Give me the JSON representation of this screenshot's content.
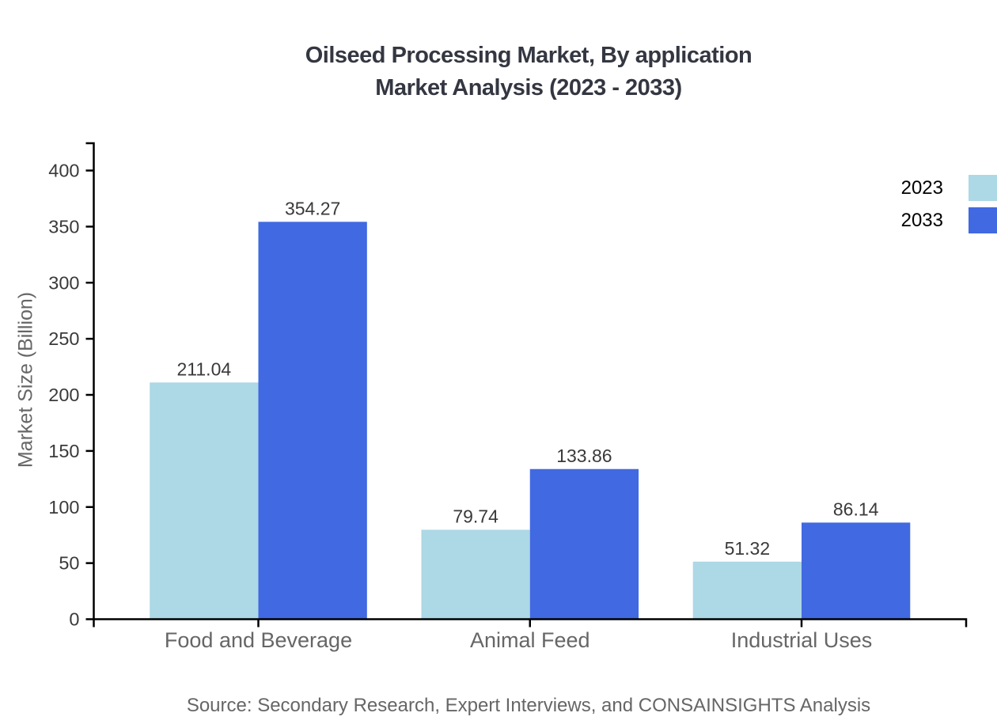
{
  "title": {
    "line1": "Oilseed Processing Market, By application",
    "line2": "Market Analysis (2023 - 2033)"
  },
  "chart_data": {
    "type": "bar",
    "title": "Oilseed Processing Market, By application Market Analysis (2023 - 2033)",
    "categories": [
      "Food and Beverage",
      "Animal Feed",
      "Industrial Uses"
    ],
    "series": [
      {
        "name": "2023",
        "color": "#ADD8E6",
        "values": [
          211.04,
          79.74,
          51.32
        ],
        "labels": [
          "211.04",
          "79.74",
          "51.32"
        ]
      },
      {
        "name": "2033",
        "color": "#4169E1",
        "values": [
          354.27,
          133.86,
          86.14
        ],
        "labels": [
          "354.27",
          "133.86",
          "86.14"
        ]
      }
    ],
    "xlabel": "",
    "ylabel": "Market Size (Billion)",
    "ylim": [
      0,
      400
    ],
    "yticks": [
      0,
      50,
      100,
      150,
      200,
      250,
      300,
      350,
      400
    ],
    "grid": false,
    "legend_position": "top-right",
    "source": "Source: Secondary Research, Expert Interviews, and CONSAINSIGHTS Analysis",
    "colors": {
      "series_2023": "#ADD8E6",
      "series_2033": "#4169E1",
      "axis": "#000000",
      "tick_label": "#3a3a3a",
      "value_label": "#3a3a3a",
      "category_label": "#666666",
      "ylabel": "#666666",
      "title": "#343741",
      "source": "#666666",
      "legend_text": "#000000",
      "background": "#ffffff"
    }
  }
}
